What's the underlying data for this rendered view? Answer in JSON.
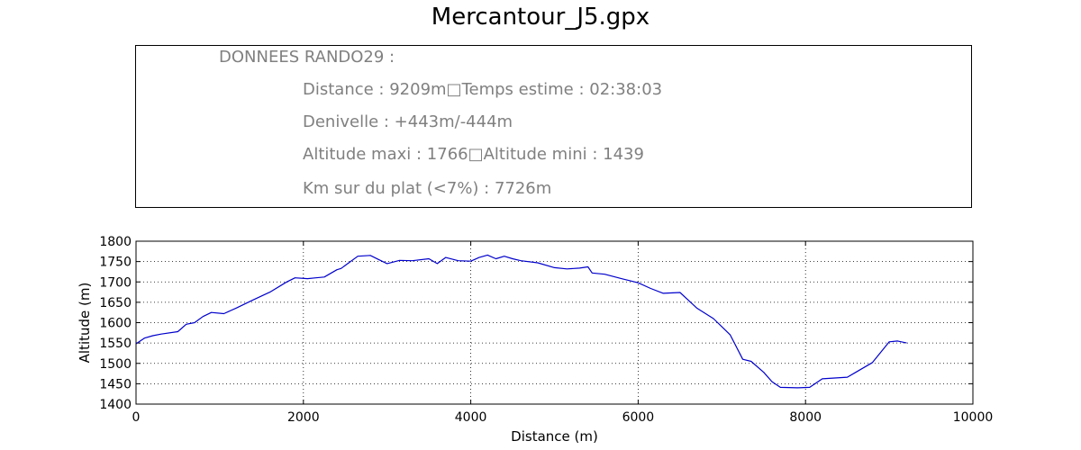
{
  "chart_data": {
    "type": "line",
    "title": "Mercantour_J5.gpx",
    "info": {
      "header": "DONNEES RANDO29  :",
      "lines": [
        "Distance : 9209m□Temps estime : 02:38:03",
        "Denivelle : +443m/-444m",
        "Altitude maxi : 1766□Altitude mini : 1439",
        "Km sur du plat (<7%) : 7726m"
      ]
    },
    "xlabel": "Distance (m)",
    "ylabel": "Altitude (m)",
    "xlim": [
      0,
      10000
    ],
    "ylim": [
      1400,
      1800
    ],
    "xticks": [
      0,
      2000,
      4000,
      6000,
      8000,
      10000
    ],
    "yticks": [
      1400,
      1450,
      1500,
      1550,
      1600,
      1650,
      1700,
      1750,
      1800
    ],
    "grid": true,
    "line_color": "#0000cc",
    "series": [
      {
        "x": [
          0,
          100,
          200,
          300,
          500,
          600,
          700,
          800,
          900,
          1050,
          1200,
          1400,
          1600,
          1800,
          1900,
          2050,
          2150,
          2250,
          2400,
          2450,
          2550,
          2650,
          2800,
          2900,
          3000,
          3150,
          3300,
          3500,
          3600,
          3700,
          3850,
          4000,
          4100,
          4200,
          4300,
          4400,
          4500,
          4600,
          4800,
          5000,
          5150,
          5300,
          5400,
          5450,
          5600,
          5800,
          6000,
          6150,
          6300,
          6500,
          6700,
          6900,
          7100,
          7250,
          7350,
          7500,
          7600,
          7700,
          7900,
          8050,
          8200,
          8500,
          8600,
          8800,
          9000,
          9100,
          9209
        ],
        "y": [
          1548,
          1562,
          1568,
          1572,
          1578,
          1596,
          1600,
          1615,
          1625,
          1622,
          1636,
          1656,
          1675,
          1700,
          1710,
          1708,
          1710,
          1712,
          1730,
          1733,
          1748,
          1763,
          1765,
          1755,
          1745,
          1753,
          1752,
          1757,
          1745,
          1760,
          1752,
          1751,
          1760,
          1766,
          1757,
          1763,
          1757,
          1752,
          1747,
          1735,
          1732,
          1734,
          1737,
          1722,
          1719,
          1708,
          1698,
          1684,
          1672,
          1674,
          1636,
          1610,
          1570,
          1510,
          1505,
          1478,
          1455,
          1441,
          1440,
          1441,
          1462,
          1466,
          1478,
          1502,
          1553,
          1555,
          1550
        ]
      }
    ]
  }
}
